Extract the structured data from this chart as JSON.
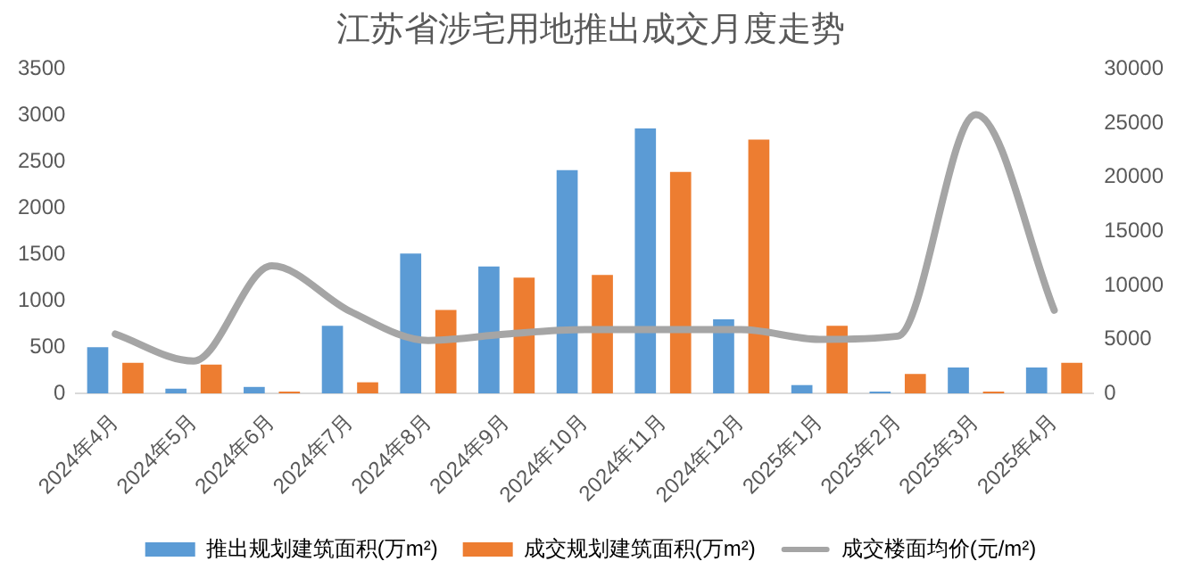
{
  "chart_data": {
    "type": "bar",
    "title": "江苏省涉宅用地推出成交月度走势",
    "categories": [
      "2024年4月",
      "2024年5月",
      "2024年6月",
      "2024年7月",
      "2024年8月",
      "2024年9月",
      "2024年10月",
      "2024年11月",
      "2024年12月",
      "2025年1月",
      "2025年2月",
      "2025年3月",
      "2025年4月"
    ],
    "series": [
      {
        "name": "推出规划建筑面积(万m²)",
        "color": "#5b9bd5",
        "values": [
          500,
          50,
          70,
          730,
          1510,
          1370,
          2410,
          2860,
          800,
          90,
          20,
          280,
          280
        ]
      },
      {
        "name": "成交规划建筑面积(万m²)",
        "color": "#ed7d31",
        "values": [
          330,
          310,
          20,
          120,
          900,
          1250,
          1280,
          2390,
          2740,
          730,
          210,
          20,
          330
        ]
      },
      {
        "name": "成交楼面均价(元/m²)",
        "type": "line",
        "axis": "y2",
        "color": "#a5a5a5",
        "values": [
          5500,
          3000,
          11800,
          7600,
          4900,
          5500,
          5900,
          5900,
          5900,
          5000,
          5300,
          25800,
          7700
        ]
      }
    ],
    "ylim": [
      0,
      3500
    ],
    "yticks": [
      0,
      500,
      1000,
      1500,
      2000,
      2500,
      3000,
      3500
    ],
    "y2lim": [
      0,
      30000
    ],
    "y2ticks": [
      0,
      5000,
      10000,
      15000,
      20000,
      25000,
      30000
    ],
    "grid": false,
    "legend": "bottom",
    "marker": "none"
  }
}
